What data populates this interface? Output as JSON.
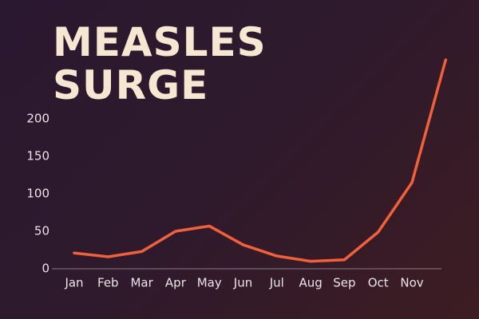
{
  "chart_data": {
    "type": "line",
    "title": "MEASLES SURGE",
    "categories": [
      "Jan",
      "Feb",
      "Mar",
      "Apr",
      "May",
      "Jun",
      "Jul",
      "Aug",
      "Sep",
      "Oct",
      "Nov",
      null
    ],
    "values": [
      21,
      16,
      23,
      50,
      57,
      32,
      17,
      10,
      12,
      49,
      115,
      279
    ],
    "color": "#f0603a",
    "ylim": [
      0,
      280
    ],
    "yticks": [
      0,
      50,
      100,
      150,
      200
    ],
    "grid": false
  }
}
